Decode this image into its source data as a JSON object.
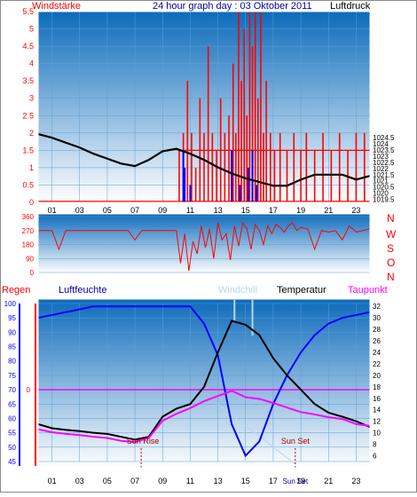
{
  "header": {
    "left_label": "Windstärke",
    "title": "24 hour graph day : 03 Oktober 2011",
    "right_label": "Luftdruck"
  },
  "colors": {
    "red": "#ff0000",
    "blue": "#0000ff",
    "black": "#000000",
    "magenta": "#ff00ff",
    "windchill": "#b4d7ee",
    "panel_top": "#0d6bbb",
    "panel_bottom": "#ffffff",
    "frame": "#8a8a8a"
  },
  "hours": [
    "01",
    "03",
    "05",
    "07",
    "09",
    "11",
    "13",
    "15",
    "17",
    "19",
    "21",
    "23"
  ],
  "chart_data": [
    {
      "type": "line",
      "title": "Windstärke / Luftdruck",
      "x": [
        0,
        1,
        2,
        3,
        4,
        5,
        6,
        7,
        8,
        9,
        10,
        11,
        12,
        13,
        14,
        15,
        16,
        17,
        18,
        19,
        20,
        21,
        22,
        23,
        24
      ],
      "ylim_left": [
        0,
        5.5
      ],
      "yticks_left": [
        "0",
        "0.5",
        "1",
        "1.5",
        "2",
        "2.5",
        "3",
        "3.5",
        "4",
        "4.5",
        "5",
        "5.5"
      ],
      "ylim_right": [
        1019.25,
        1034.75
      ],
      "yticks_right": [
        "1019.5",
        "1020",
        "1020.5",
        "1021",
        "1021.5",
        "1022",
        "1022.5",
        "1023",
        "1023.5",
        "1024",
        "1024.5"
      ],
      "series": [
        {
          "name": "Luftdruck",
          "color": "#000000",
          "axis": "right",
          "values": [
            1024.8,
            1024.5,
            1024.1,
            1023.7,
            1023.2,
            1022.8,
            1022.4,
            1022.2,
            1022.7,
            1023.4,
            1023.6,
            1023.2,
            1022.7,
            1022.1,
            1021.6,
            1021.2,
            1020.9,
            1020.6,
            1020.6,
            1021.1,
            1021.5,
            1021.5,
            1021.5,
            1021.1,
            1021.4
          ]
        },
        {
          "name": "Windstärke",
          "color": "#ff0000",
          "axis": "left",
          "bars": [
            [
              10.2,
              1.5
            ],
            [
              10.5,
              2.0
            ],
            [
              10.8,
              3.5
            ],
            [
              11.1,
              2.0
            ],
            [
              11.4,
              1.0
            ],
            [
              11.7,
              3.0
            ],
            [
              12.0,
              2.0
            ],
            [
              12.3,
              4.5
            ],
            [
              12.6,
              2.0
            ],
            [
              12.9,
              1.5
            ],
            [
              13.2,
              3.0
            ],
            [
              13.5,
              2.0
            ],
            [
              13.8,
              2.5
            ],
            [
              14.1,
              4.0
            ],
            [
              14.3,
              2.0
            ],
            [
              14.5,
              5.5
            ],
            [
              14.7,
              3.5
            ],
            [
              14.9,
              5.0
            ],
            [
              15.1,
              2.5
            ],
            [
              15.3,
              5.5
            ],
            [
              15.5,
              4.5
            ],
            [
              15.7,
              5.5
            ],
            [
              15.9,
              3.0
            ],
            [
              16.1,
              5.5
            ],
            [
              16.3,
              2.0
            ],
            [
              16.5,
              3.5
            ],
            [
              16.8,
              2.0
            ],
            [
              17.1,
              1.5
            ],
            [
              17.5,
              2.0
            ],
            [
              18.0,
              1.5
            ],
            [
              18.5,
              2.0
            ],
            [
              19.0,
              1.5
            ],
            [
              19.4,
              2.0
            ],
            [
              20.0,
              1.5
            ],
            [
              20.6,
              2.0
            ],
            [
              21.2,
              1.5
            ],
            [
              21.8,
              2.0
            ],
            [
              22.4,
              1.5
            ],
            [
              23.0,
              2.0
            ],
            [
              23.6,
              2.0
            ]
          ]
        },
        {
          "name": "Windböen",
          "color": "#0000ff",
          "axis": "left",
          "bars": [
            [
              10.5,
              1.5
            ],
            [
              10.6,
              1.0
            ],
            [
              11.0,
              0.5
            ],
            [
              14.0,
              1.5
            ],
            [
              14.6,
              0.5
            ],
            [
              15.2,
              1.0
            ],
            [
              15.5,
              1.5
            ],
            [
              15.8,
              0.5
            ]
          ]
        }
      ]
    },
    {
      "type": "scatter",
      "title": "Windrichtung",
      "ylim": [
        0,
        360
      ],
      "yticks": [
        "0",
        "90",
        "180",
        "270",
        "360"
      ],
      "direction_labels": [
        "N",
        "W",
        "S",
        "O",
        "N"
      ],
      "series": [
        {
          "name": "Windrichtung",
          "color": "#ff0000",
          "x": [
            0,
            0.5,
            1,
            1.5,
            2,
            2.5,
            3,
            3.5,
            4,
            4.5,
            5,
            5.5,
            6,
            6.5,
            7,
            7.5,
            8,
            8.5,
            9,
            9.5,
            10,
            10.3,
            10.6,
            10.9,
            11.2,
            11.5,
            11.8,
            12.1,
            12.4,
            12.7,
            13,
            13.3,
            13.6,
            13.9,
            14.2,
            14.5,
            14.8,
            15.1,
            15.4,
            15.7,
            16,
            16.3,
            16.6,
            16.9,
            17.2,
            17.5,
            17.8,
            18.1,
            18.4,
            18.7,
            19,
            19.5,
            20,
            20.5,
            21,
            21.5,
            22,
            22.5,
            23,
            23.5,
            24
          ],
          "values": [
            270,
            270,
            270,
            150,
            270,
            270,
            270,
            270,
            270,
            270,
            270,
            270,
            270,
            270,
            210,
            270,
            270,
            270,
            270,
            270,
            270,
            60,
            250,
            10,
            200,
            120,
            300,
            160,
            280,
            90,
            320,
            210,
            250,
            80,
            300,
            170,
            320,
            280,
            150,
            310,
            270,
            180,
            300,
            250,
            310,
            290,
            260,
            300,
            320,
            270,
            290,
            280,
            150,
            270,
            260,
            270,
            210,
            300,
            260,
            270,
            280
          ]
        }
      ]
    },
    {
      "type": "line",
      "title": "Regen / Luftfeuchte / Windchill / Temperatur / Taupunkt",
      "x": [
        0,
        1,
        2,
        3,
        4,
        5,
        6,
        7,
        8,
        9,
        10,
        11,
        12,
        13,
        14,
        15,
        16,
        17,
        18,
        19,
        20,
        21,
        22,
        23,
        24
      ],
      "ylim_left": [
        45,
        100
      ],
      "yticks_left": [
        "45",
        "50",
        "55",
        "60",
        "65",
        "70",
        "75",
        "80",
        "85",
        "90",
        "95",
        "100"
      ],
      "ylim_right": [
        5,
        32.5
      ],
      "yticks_right": [
        "6",
        "8",
        "10",
        "12",
        "14",
        "16",
        "18",
        "20",
        "22",
        "24",
        "26",
        "28",
        "30",
        "32"
      ],
      "rain_label_value": "0",
      "rain_level": 70,
      "annotations": {
        "sun_rise": "Sun Rise",
        "sun_rise_x": 7.45,
        "sun_set": "Sun Set",
        "sun_set_x": 18.6
      },
      "series": [
        {
          "name": "Luftfeuchte",
          "color": "#0000ff",
          "axis": "left",
          "values": [
            95,
            96,
            97,
            98,
            99,
            99,
            99,
            99,
            99,
            99,
            99,
            99,
            93,
            82,
            58,
            47,
            52,
            65,
            75,
            83,
            89,
            93,
            95,
            96,
            97
          ]
        },
        {
          "name": "Temperatur",
          "color": "#000000",
          "axis": "right",
          "values": [
            11.5,
            10.8,
            10.5,
            10.3,
            10.0,
            9.8,
            9.3,
            8.8,
            9.3,
            12.8,
            14.2,
            15.0,
            18.0,
            24.0,
            29.5,
            28.8,
            27.0,
            23.0,
            20.0,
            17.5,
            15.0,
            13.5,
            12.8,
            12.0,
            11.0
          ]
        },
        {
          "name": "Taupunkt",
          "color": "#ff00ff",
          "axis": "right",
          "values": [
            10.6,
            10.1,
            9.8,
            9.6,
            9.3,
            9.1,
            8.6,
            8.4,
            9.1,
            12.1,
            13.3,
            14.3,
            15.5,
            16.4,
            17.3,
            16.2,
            15.9,
            15.2,
            14.4,
            13.6,
            13.2,
            12.7,
            12.4,
            11.5,
            11.2
          ]
        },
        {
          "name": "Windchill",
          "color": "#b4d7ee",
          "axis": "right",
          "spikes": [
            [
              14.2,
              32.5
            ],
            [
              15.5,
              30.0
            ]
          ]
        }
      ]
    }
  ],
  "bottom_legend": {
    "rain": "Regen",
    "humidity": "Luftfeuchte",
    "windchill": "Windchill",
    "temperature": "Temperatur",
    "dewpoint": "Taupunkt"
  }
}
